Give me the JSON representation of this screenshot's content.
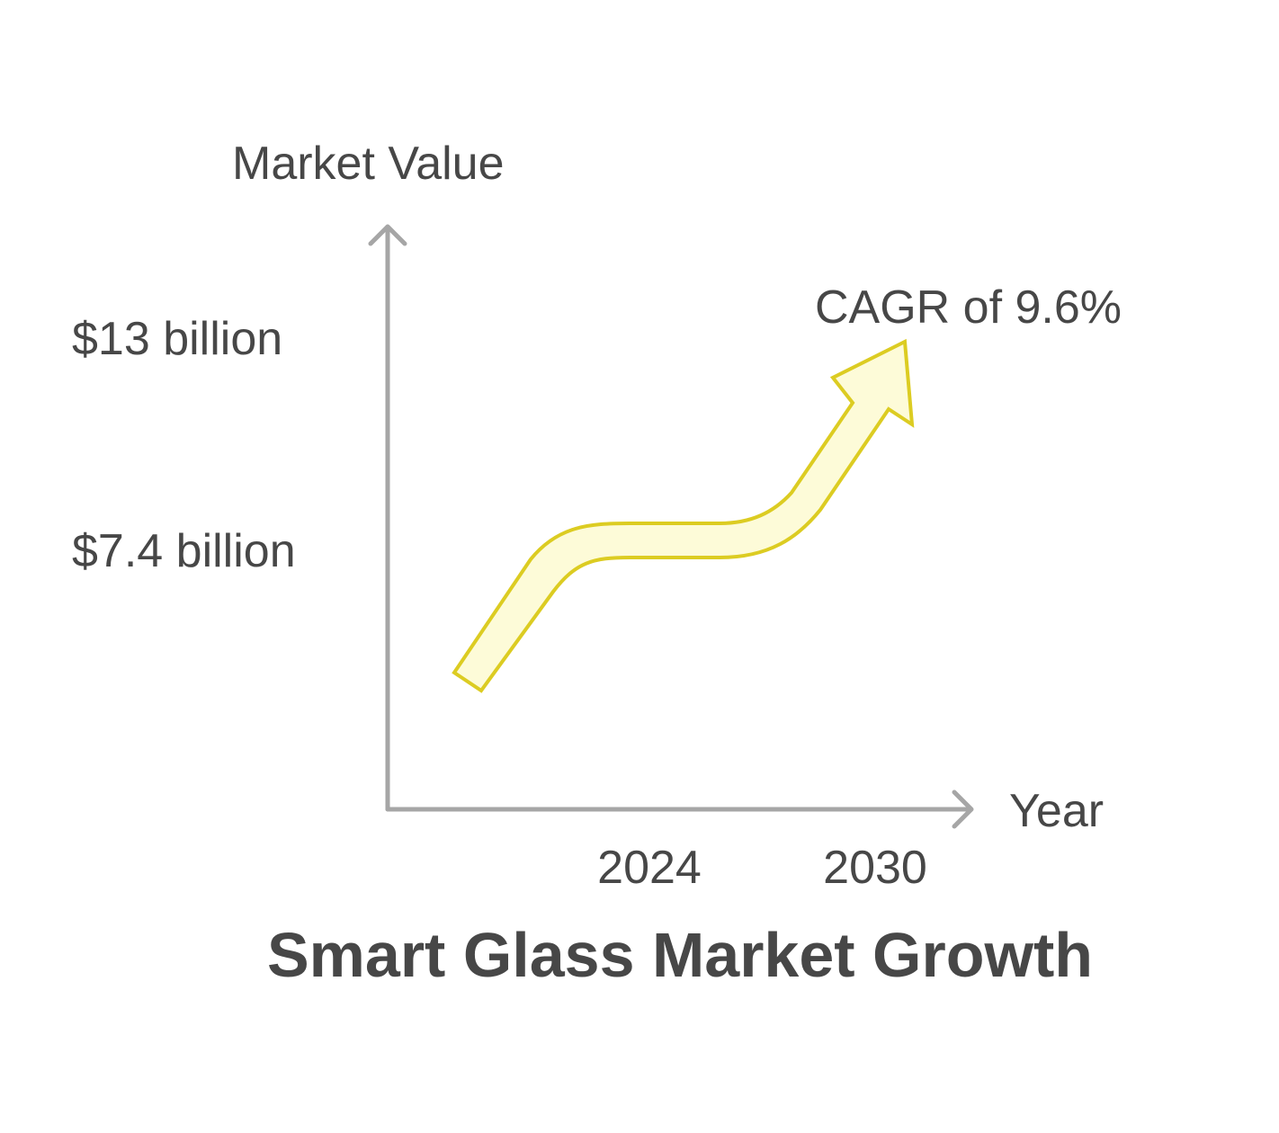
{
  "chart_data": {
    "type": "line",
    "title": "Smart Glass Market Growth",
    "xlabel": "Year",
    "ylabel": "Market Value",
    "x_ticks": [
      "2024",
      "2030"
    ],
    "y_ticks": [
      "$7.4 billion",
      "$13 billion"
    ],
    "series": [
      {
        "x": [
          2024,
          2030
        ],
        "y": [
          7.4,
          13
        ],
        "annotation": "CAGR of 9.6%"
      }
    ],
    "grid": false,
    "legend": "none",
    "colors": {
      "axis": "#a6a6a6",
      "text": "#474747",
      "arrow_fill": "#fdfbd8",
      "arrow_stroke": "#dccc22"
    }
  }
}
